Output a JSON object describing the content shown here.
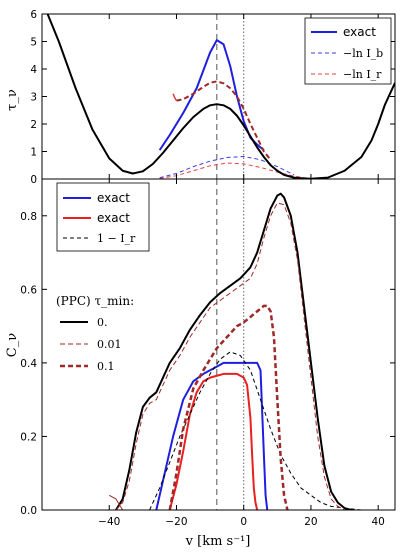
{
  "chart_data": [
    {
      "type": "line",
      "panel": "top",
      "ylabel": "τ_ν",
      "xlim": [
        -60,
        45
      ],
      "ylim": [
        0,
        6
      ],
      "yticks": [
        "0",
        "1",
        "2",
        "3",
        "4",
        "5",
        "6"
      ],
      "vlines": [
        {
          "x": -8,
          "style": "dashed"
        },
        {
          "x": 0,
          "style": "dotted"
        }
      ],
      "legend": {
        "placement": "top-right",
        "entries": [
          "exact",
          "−ln I_b",
          "−ln I_r"
        ]
      },
      "series": [
        {
          "name": "exact",
          "color": "#1f1fe0",
          "width": 2,
          "dash": "",
          "x": [
            -25,
            -22,
            -18,
            -14,
            -10,
            -8,
            -6,
            -4,
            -2,
            0,
            2,
            4,
            6
          ],
          "y": [
            1.05,
            1.6,
            2.4,
            3.3,
            4.6,
            5.05,
            4.9,
            4.1,
            3.0,
            2.1,
            1.5,
            1.25,
            1.05
          ]
        },
        {
          "name": "−ln I_b",
          "color": "#3a3ae8",
          "width": 1,
          "dash": "4,3",
          "x": [
            -25,
            -20,
            -15,
            -10,
            -5,
            0,
            5,
            10,
            15
          ],
          "y": [
            0.05,
            0.2,
            0.45,
            0.65,
            0.78,
            0.82,
            0.7,
            0.45,
            0.15
          ]
        },
        {
          "name": "−ln I_r",
          "color": "#e84040",
          "width": 1,
          "dash": "4,3",
          "x": [
            -25,
            -20,
            -15,
            -10,
            -5,
            0,
            5,
            10,
            15,
            20
          ],
          "y": [
            0.02,
            0.12,
            0.3,
            0.48,
            0.58,
            0.55,
            0.42,
            0.25,
            0.1,
            0.02
          ]
        },
        {
          "name": "",
          "color": "#000000",
          "width": 2,
          "dash": "",
          "x": [
            -60,
            -55,
            -50,
            -45,
            -40,
            -36,
            -33,
            -30,
            -27,
            -24,
            -21,
            -18,
            -15,
            -12,
            -10,
            -8,
            -6,
            -4,
            -2,
            0,
            2,
            4,
            6,
            8,
            10,
            12,
            15,
            18,
            20,
            25,
            30,
            35,
            38,
            40,
            42,
            45
          ],
          "y": [
            6.5,
            5.0,
            3.3,
            1.8,
            0.75,
            0.3,
            0.2,
            0.28,
            0.55,
            0.95,
            1.4,
            1.85,
            2.25,
            2.55,
            2.68,
            2.72,
            2.68,
            2.55,
            2.3,
            1.95,
            1.55,
            1.15,
            0.8,
            0.5,
            0.3,
            0.15,
            0.05,
            0.02,
            0.01,
            0.05,
            0.3,
            0.8,
            1.4,
            2.0,
            2.7,
            3.5
          ]
        },
        {
          "name": "",
          "color": "#a02828",
          "width": 2,
          "dash": "5,3",
          "x": [
            -20,
            -18,
            -15,
            -12,
            -10,
            -8,
            -6,
            -4,
            -2,
            0,
            2,
            4,
            6,
            8
          ],
          "y": [
            2.85,
            2.9,
            3.1,
            3.35,
            3.5,
            3.55,
            3.48,
            3.3,
            3.0,
            2.55,
            2.0,
            1.5,
            1.0,
            0.7
          ]
        },
        {
          "name": "",
          "color": "#d83c3c",
          "width": 1.5,
          "dash": "",
          "x": [
            -21,
            -20.5,
            -20
          ],
          "y": [
            3.1,
            2.95,
            2.85
          ]
        }
      ]
    },
    {
      "type": "line",
      "panel": "bottom",
      "ylabel": "C_ν",
      "xlabel": "v [km s⁻¹]",
      "xlim": [
        -60,
        45
      ],
      "ylim": [
        0,
        0.9
      ],
      "xticks": [
        "−40",
        "−20",
        "0",
        "20",
        "40"
      ],
      "xtick_values": [
        -40,
        -20,
        0,
        20,
        40
      ],
      "yticks": [
        "0.0",
        "0.2",
        "0.4",
        "0.6",
        "0.8"
      ],
      "vlines": [
        {
          "x": -8,
          "style": "dashed"
        },
        {
          "x": 0,
          "style": "dotted"
        }
      ],
      "legend_top": {
        "placement": "top-left",
        "entries": [
          "exact",
          "exact",
          "1 − I_r"
        ]
      },
      "legend_ppc": {
        "placement": "center-left",
        "title": "(PPC) τ_min:",
        "entries": [
          "0.",
          "0.01",
          "0.1"
        ]
      },
      "series": [
        {
          "name": "exact",
          "color": "#1f1fe0",
          "width": 2,
          "dash": "",
          "x": [
            -26,
            -24,
            -21,
            -18,
            -15,
            -12,
            -10,
            -8,
            -6,
            -4,
            -2,
            0,
            2,
            4,
            5,
            6,
            6.5,
            7
          ],
          "y": [
            0.0,
            0.08,
            0.2,
            0.3,
            0.35,
            0.37,
            0.38,
            0.39,
            0.4,
            0.4,
            0.4,
            0.4,
            0.4,
            0.4,
            0.38,
            0.15,
            0.04,
            0.0
          ]
        },
        {
          "name": "exact",
          "color": "#e82020",
          "width": 2,
          "dash": "",
          "x": [
            -22,
            -20,
            -18,
            -16,
            -14,
            -12,
            -10,
            -8,
            -6,
            -4,
            -2,
            0,
            1,
            2,
            2.5,
            3,
            3.5,
            4
          ],
          "y": [
            0.0,
            0.07,
            0.16,
            0.26,
            0.32,
            0.35,
            0.36,
            0.365,
            0.37,
            0.37,
            0.37,
            0.36,
            0.34,
            0.25,
            0.15,
            0.06,
            0.02,
            0.0
          ]
        },
        {
          "name": "1 − I_r",
          "color": "#000000",
          "width": 1,
          "dash": "4,3",
          "x": [
            -28,
            -25,
            -22,
            -19,
            -16,
            -13,
            -10,
            -7,
            -4,
            -1,
            2,
            5,
            8,
            11,
            14,
            17,
            20,
            23,
            26,
            30,
            35
          ],
          "y": [
            0.0,
            0.06,
            0.13,
            0.2,
            0.26,
            0.32,
            0.37,
            0.41,
            0.43,
            0.42,
            0.38,
            0.3,
            0.22,
            0.15,
            0.1,
            0.06,
            0.04,
            0.02,
            0.01,
            0.005,
            0.0
          ]
        },
        {
          "name": "0.",
          "color": "#000000",
          "width": 2,
          "dash": "",
          "x": [
            -38,
            -36,
            -34,
            -32,
            -30,
            -28,
            -26,
            -24,
            -22,
            -19,
            -16,
            -13,
            -10,
            -7,
            -4,
            -1,
            2,
            4,
            6,
            8,
            10,
            11,
            12,
            14,
            16,
            18,
            20,
            22,
            24,
            26,
            28,
            30,
            32
          ],
          "y": [
            0.0,
            0.03,
            0.11,
            0.21,
            0.28,
            0.305,
            0.32,
            0.36,
            0.4,
            0.44,
            0.49,
            0.53,
            0.565,
            0.59,
            0.61,
            0.63,
            0.66,
            0.7,
            0.76,
            0.82,
            0.855,
            0.86,
            0.85,
            0.8,
            0.7,
            0.55,
            0.4,
            0.25,
            0.12,
            0.05,
            0.02,
            0.005,
            0.0
          ]
        },
        {
          "name": "0.01",
          "color": "#a02828",
          "width": 1,
          "dash": "5,3",
          "x": [
            -38,
            -36,
            -34,
            -32,
            -30,
            -28,
            -26,
            -24,
            -22,
            -19,
            -16,
            -13,
            -10,
            -7,
            -4,
            -1,
            2,
            4,
            6,
            8,
            10,
            12,
            14,
            16,
            18,
            20,
            22,
            24,
            26,
            28,
            30
          ],
          "y": [
            0.0,
            0.02,
            0.08,
            0.18,
            0.26,
            0.29,
            0.3,
            0.34,
            0.38,
            0.42,
            0.47,
            0.51,
            0.55,
            0.57,
            0.59,
            0.61,
            0.63,
            0.67,
            0.74,
            0.8,
            0.835,
            0.83,
            0.78,
            0.68,
            0.52,
            0.36,
            0.2,
            0.09,
            0.03,
            0.01,
            0.0
          ]
        },
        {
          "name": "0.1",
          "color": "#a02828",
          "width": 2.5,
          "dash": "5,3",
          "x": [
            -22,
            -20,
            -18,
            -15,
            -12,
            -10,
            -8,
            -6,
            -4,
            -2,
            0,
            2,
            4,
            6,
            7,
            8,
            9,
            10,
            11,
            12,
            13
          ],
          "y": [
            0.0,
            0.1,
            0.22,
            0.33,
            0.38,
            0.41,
            0.44,
            0.46,
            0.48,
            0.5,
            0.51,
            0.525,
            0.54,
            0.555,
            0.555,
            0.54,
            0.47,
            0.3,
            0.14,
            0.04,
            0.0
          ]
        },
        {
          "name": "",
          "color": "#a02828",
          "width": 1,
          "dash": "",
          "x": [
            -40,
            -38,
            -36
          ],
          "y": [
            0.04,
            0.03,
            0.0
          ]
        }
      ]
    }
  ]
}
